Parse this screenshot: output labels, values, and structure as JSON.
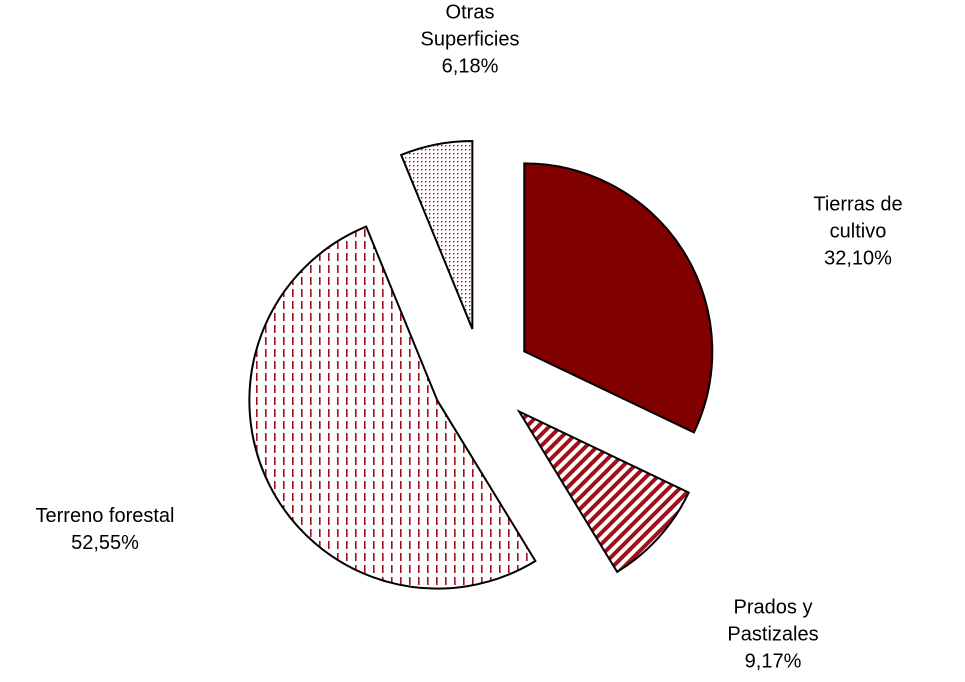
{
  "chart_data": {
    "type": "pie",
    "categories": [
      "Tierras de cultivo",
      "Prados y Pastizales",
      "Terreno forestal",
      "Otras Superficies"
    ],
    "values": [
      32.1,
      9.17,
      52.55,
      6.18
    ],
    "value_labels": [
      "32,10%",
      "9,17%",
      "52,55%",
      "6,18%"
    ],
    "colors": [
      "#800000",
      "#a0101a",
      "#a0101a",
      "#a0101a"
    ]
  }
}
